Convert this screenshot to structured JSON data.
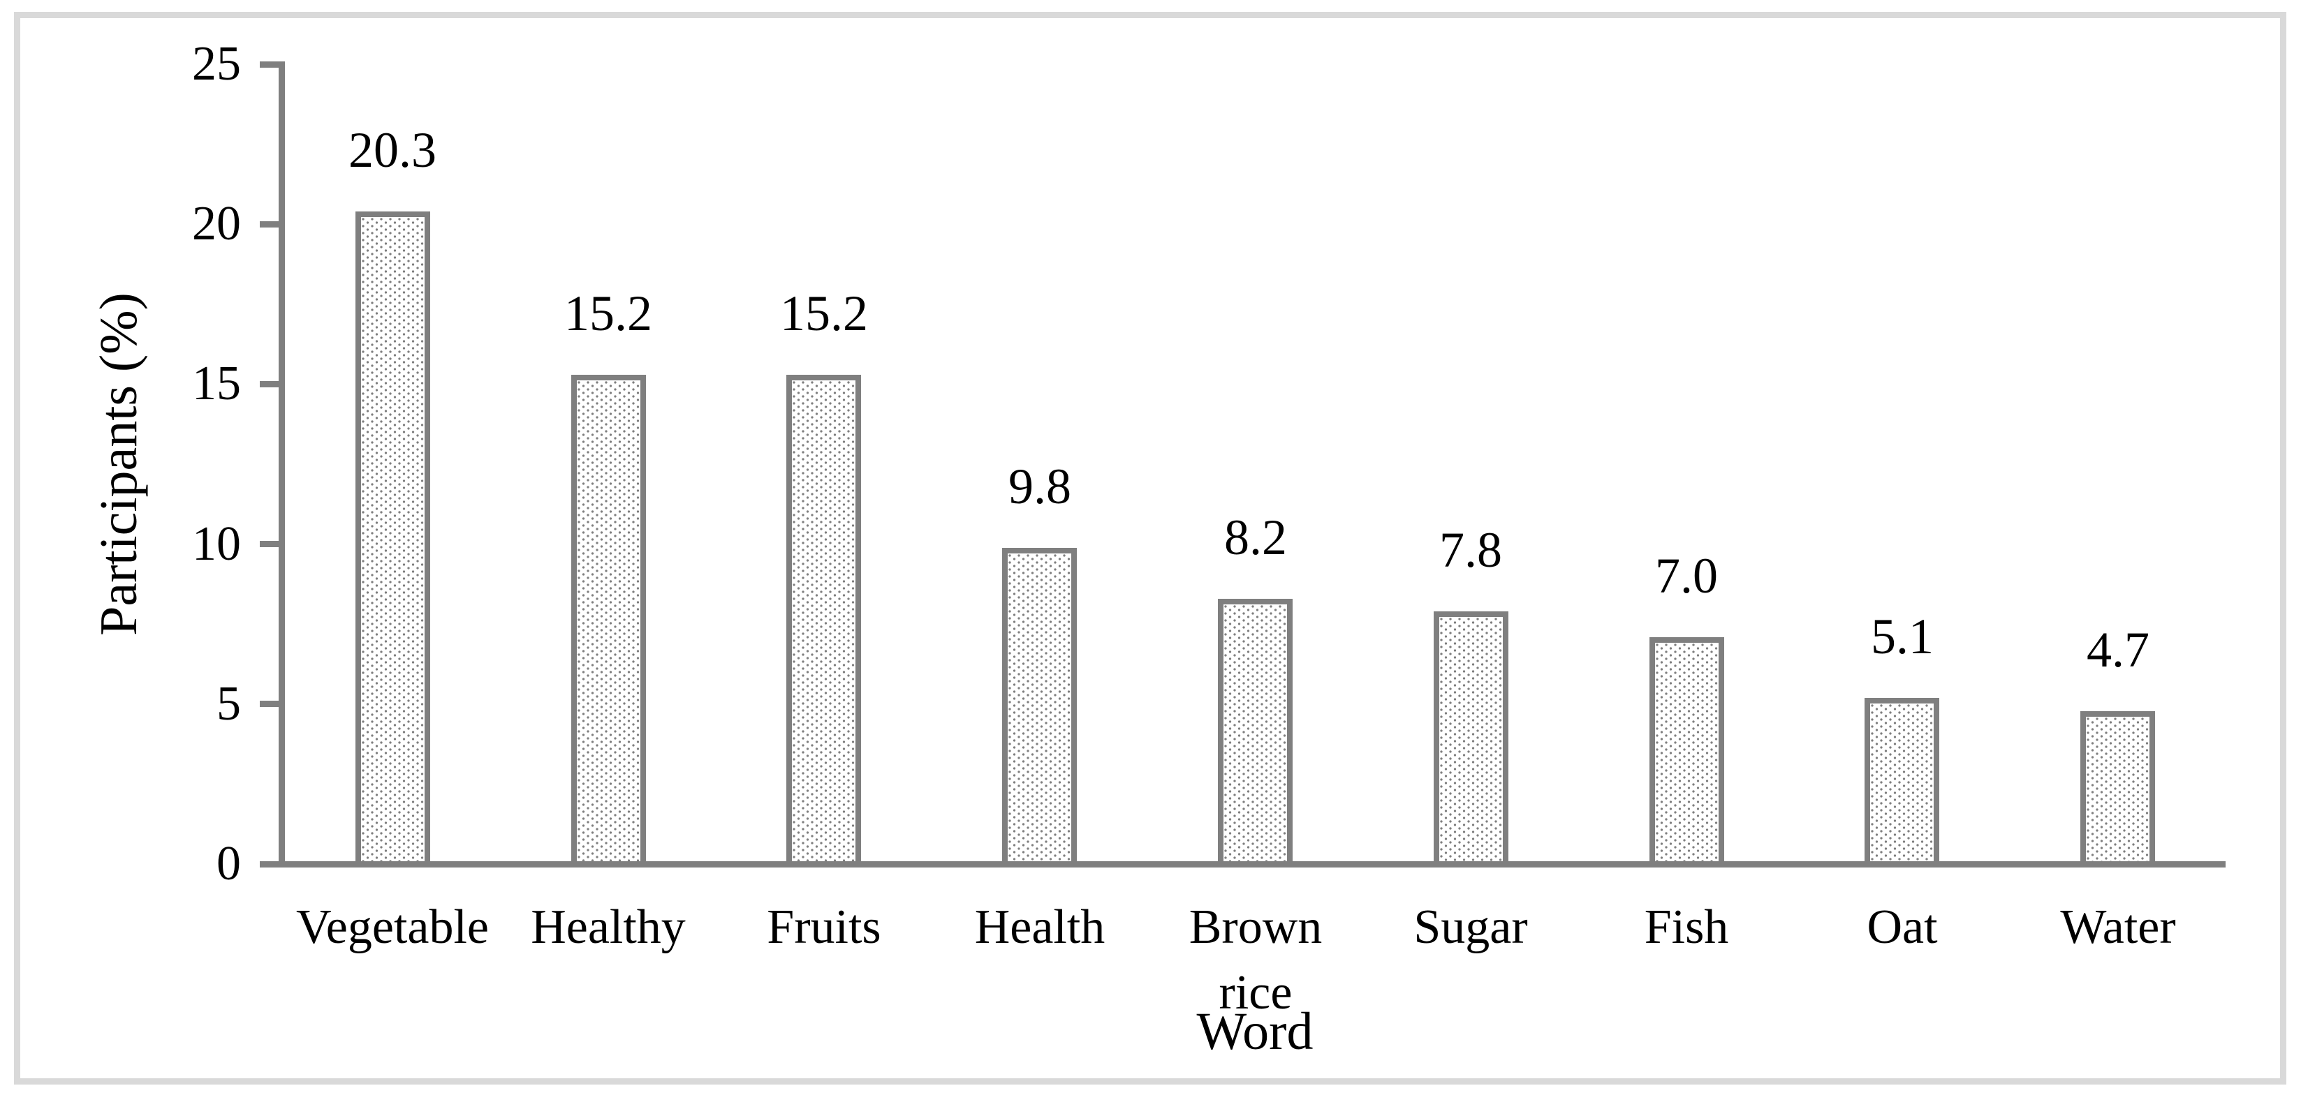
{
  "frame": {
    "color": "#d9d9d9"
  },
  "chart_data": {
    "type": "bar",
    "title": "",
    "xlabel": "Word",
    "ylabel": "Participants (%)",
    "categories": [
      "Vegetable",
      "Healthy",
      "Fruits",
      "Health",
      "Brown rice",
      "Sugar",
      "Fish",
      "Oat",
      "Water"
    ],
    "values": [
      20.3,
      15.2,
      15.2,
      9.8,
      8.2,
      7.8,
      7.0,
      5.1,
      4.7
    ],
    "value_labels": [
      "20.3",
      "15.2",
      "15.2",
      "9.8",
      "8.2",
      "7.8",
      "7.0",
      "5.1",
      "4.7"
    ],
    "ylim": [
      0,
      25
    ],
    "yticks": [
      0,
      5,
      10,
      15,
      20,
      25
    ],
    "ytick_labels": [
      "0",
      "5",
      "10",
      "15",
      "20",
      "25"
    ],
    "grid": "off",
    "legend": "none",
    "bar_fill": "dotted-pattern-on-white",
    "bar_border_color": "#7f7f7f",
    "axis_color": "#7f7f7f",
    "text_color": "#000000"
  }
}
